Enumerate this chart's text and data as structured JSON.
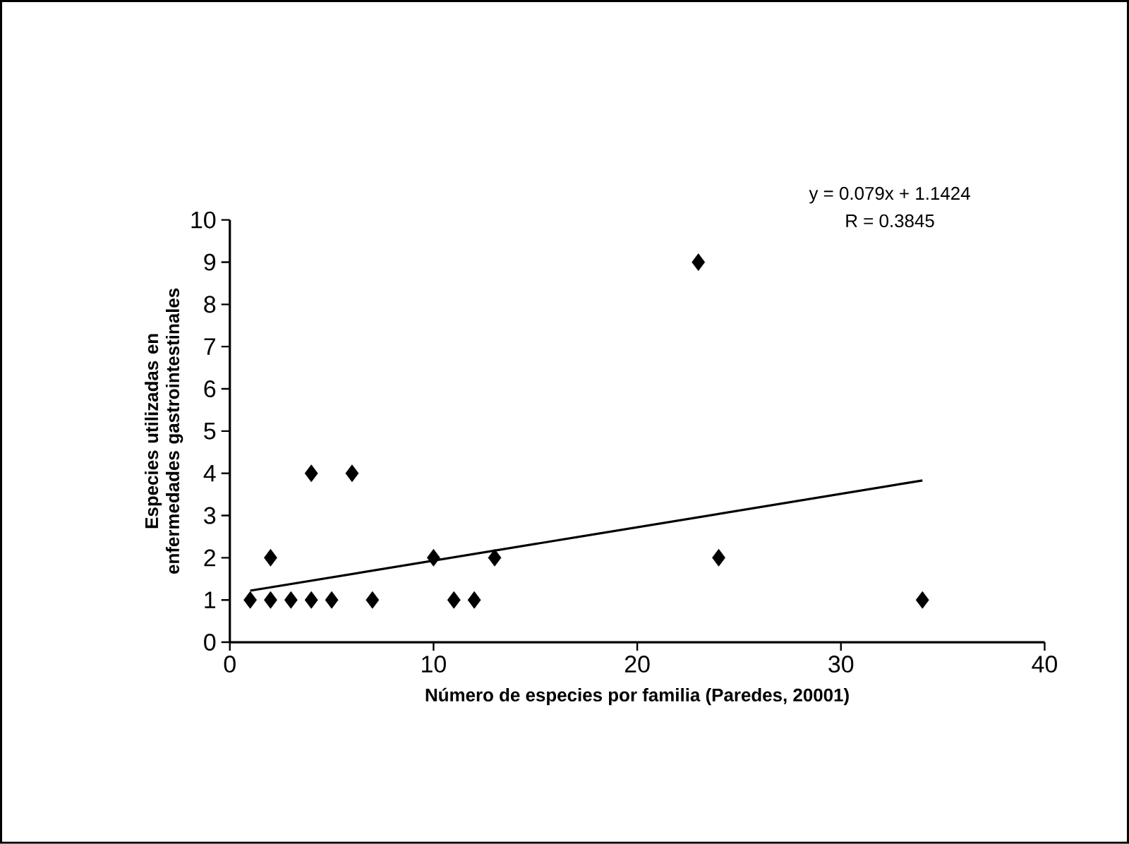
{
  "chart_data": {
    "type": "scatter",
    "xlabel": "Número de especies por familia (Paredes, 20001)",
    "ylabel": "Especies utilizadas en enfermedades gastrointestinales",
    "xlim": [
      0,
      40
    ],
    "xticks": [
      0,
      10,
      20,
      30,
      40
    ],
    "ylim": [
      0,
      10
    ],
    "yticks": [
      0,
      1,
      2,
      3,
      4,
      5,
      6,
      7,
      8,
      9,
      10
    ],
    "grid": false,
    "marker": "diamond",
    "annotations": [
      "y = 0.079x + 1.1424",
      "R = 0.3845"
    ],
    "series": [
      {
        "color": "#000000",
        "x": [
          1,
          2,
          2,
          3,
          4,
          4,
          5,
          6,
          7,
          10,
          11,
          12,
          13,
          23,
          24,
          34
        ],
        "values": [
          1,
          1,
          2,
          1,
          1,
          4,
          1,
          4,
          1,
          2,
          1,
          1,
          2,
          9,
          2,
          1
        ]
      },
      {
        "type": "line",
        "color": "#000000",
        "marker": "none",
        "x": [
          1,
          34
        ],
        "values": [
          1.22,
          3.83
        ]
      }
    ]
  }
}
